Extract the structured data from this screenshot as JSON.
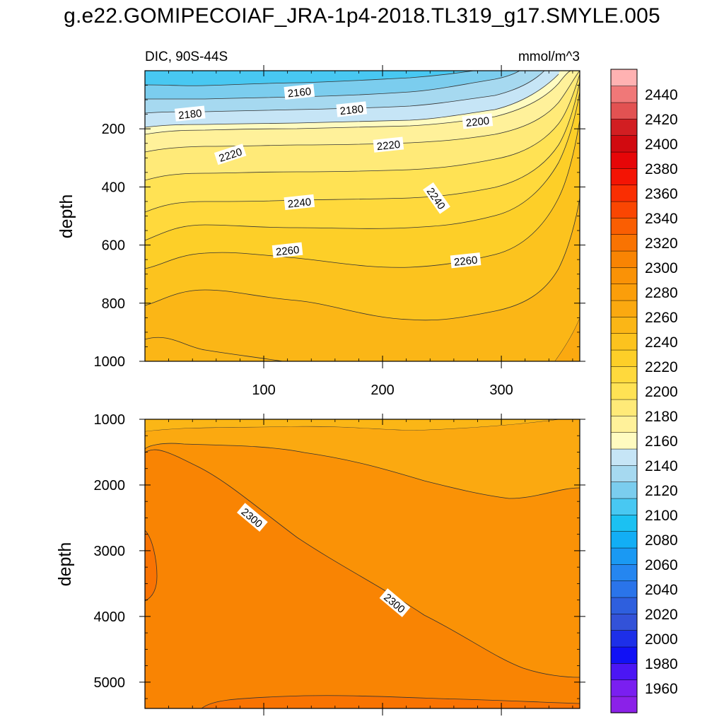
{
  "title": "g.e22.GOMIPECOIAF_JRA-1p4-2018.TL319_g17.SMYLE.005",
  "colors": {
    "levels": [
      1960,
      1980,
      2000,
      2020,
      2040,
      2060,
      2080,
      2100,
      2120,
      2140,
      2160,
      2180,
      2200,
      2220,
      2240,
      2260,
      2280,
      2300,
      2320,
      2340,
      2360,
      2380,
      2400,
      2420,
      2440
    ],
    "swatches": [
      "#8B21E8",
      "#7A1FF0",
      "#4B16F4",
      "#1111F5",
      "#1D2FE8",
      "#3352D8",
      "#2E5FDE",
      "#2A74EA",
      "#2586F0",
      "#1A99F3",
      "#12AEF5",
      "#1BC1F2",
      "#48C8F2",
      "#7BCDEE",
      "#A6D9F0",
      "#C6E5F6",
      "#FFFBC0",
      "#FFF19A",
      "#FFEA78",
      "#FFE254",
      "#FFD93C",
      "#FDCF28",
      "#FCC31E",
      "#FBB616",
      "#FBA910",
      "#FB9E0A",
      "#FA9206",
      "#F98403",
      "#F97302",
      "#FA5E02",
      "#FA4602",
      "#FA2E02",
      "#F41404",
      "#E60608",
      "#D10A10",
      "#D21E22",
      "#E25252",
      "#F07878",
      "#FFB2B2"
    ],
    "contour_line": "#333333"
  },
  "chart_data": [
    {
      "type": "heatmap",
      "title": "DIC, 90S-44S",
      "units": "mmol/m^3",
      "xlabel": "",
      "ylabel": "depth",
      "xlim": [
        0,
        366
      ],
      "ylim": [
        1000,
        0
      ],
      "xticks": [
        100,
        200,
        300
      ],
      "yticks": [
        200,
        400,
        600,
        800,
        1000
      ],
      "contour_labels": [
        {
          "text": "2160",
          "x": 130,
          "y": 75
        },
        {
          "text": "2180",
          "x": 38,
          "y": 150
        },
        {
          "text": "2180",
          "x": 174,
          "y": 135
        },
        {
          "text": "2200",
          "x": 280,
          "y": 176
        },
        {
          "text": "2220",
          "x": 72,
          "y": 290
        },
        {
          "text": "2220",
          "x": 205,
          "y": 257
        },
        {
          "text": "2240",
          "x": 130,
          "y": 455
        },
        {
          "text": "2240",
          "x": 245,
          "y": 440
        },
        {
          "text": "2260",
          "x": 120,
          "y": 620
        },
        {
          "text": "2260",
          "x": 270,
          "y": 655
        }
      ]
    },
    {
      "type": "heatmap",
      "title": "",
      "xlabel": "",
      "ylabel": "depth",
      "xlim": [
        0,
        366
      ],
      "ylim": [
        5400,
        1000
      ],
      "xticks": [],
      "yticks": [
        1000,
        2000,
        3000,
        4000,
        5000
      ],
      "contour_labels": [
        {
          "text": "2300",
          "x": 90,
          "y": 2500
        },
        {
          "text": "2300",
          "x": 210,
          "y": 3800
        }
      ]
    }
  ],
  "colorbar": {
    "labels": [
      "2440",
      "2420",
      "2400",
      "2380",
      "2360",
      "2340",
      "2320",
      "2300",
      "2280",
      "2260",
      "2240",
      "2220",
      "2200",
      "2180",
      "2160",
      "2140",
      "2120",
      "2100",
      "2080",
      "2060",
      "2040",
      "2020",
      "2000",
      "1980",
      "1960"
    ]
  }
}
